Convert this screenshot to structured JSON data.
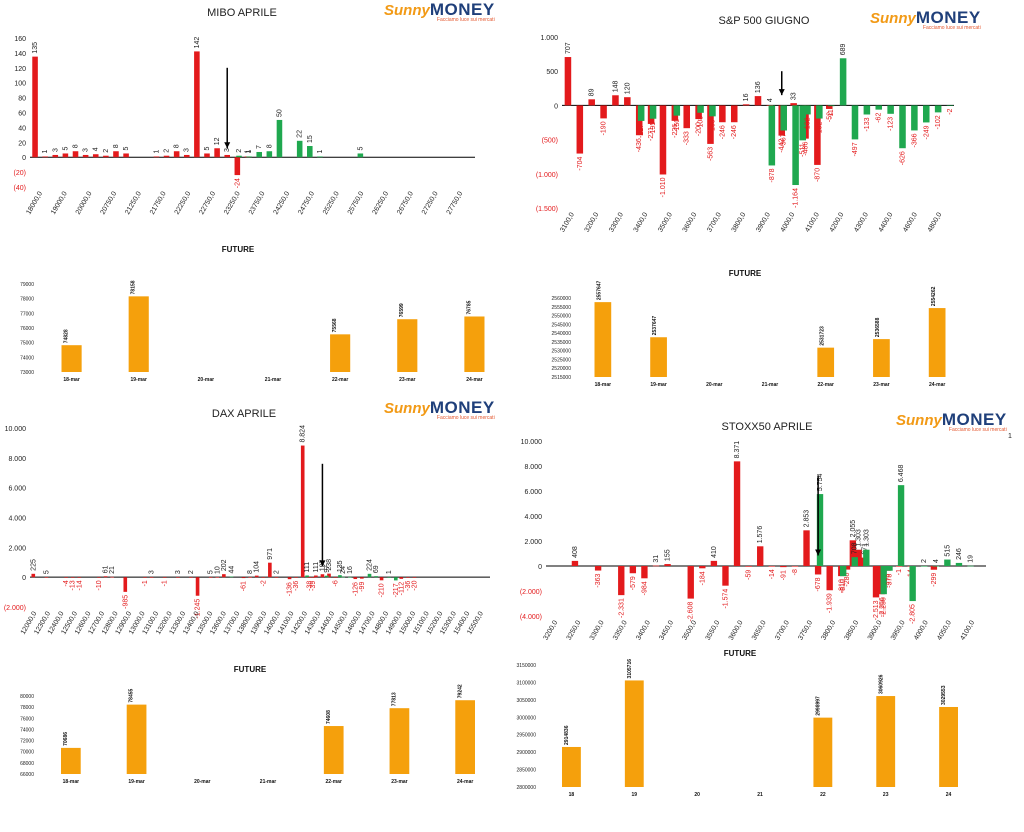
{
  "logo": {
    "brand_a": "Sunny",
    "brand_b": "MONEY",
    "tagline": "Facciamo luce sui mercati"
  },
  "page_marker": "1",
  "chart_data": [
    {
      "id": "mibo",
      "type": "bar",
      "title": "MIBO APRILE",
      "ylim": [
        -40,
        160
      ],
      "yticks": [
        -40,
        -20,
        0,
        20,
        40,
        60,
        80,
        100,
        120,
        140,
        160
      ],
      "ytick_labels": [
        "(40)",
        "(20)",
        "0",
        "20",
        "40",
        "60",
        "80",
        "100",
        "120",
        "140",
        "160"
      ],
      "xticks": [
        "18000,0",
        "19000,0",
        "20000,0",
        "20750,0",
        "21250,0",
        "21750,0",
        "22250,0",
        "22750,0",
        "23250,0",
        "23750,0",
        "24250,0",
        "24750,0",
        "25250,0",
        "25750,0",
        "26250,0",
        "26750,0",
        "27250,0",
        "27750,0"
      ],
      "num_strikes": 44,
      "series": [
        {
          "color": "#e31a1c",
          "points": [
            [
              0,
              135
            ],
            [
              1,
              1
            ],
            [
              2,
              3
            ],
            [
              3,
              5
            ],
            [
              4,
              8
            ],
            [
              5,
              3
            ],
            [
              6,
              4
            ],
            [
              7,
              2
            ],
            [
              8,
              8
            ],
            [
              9,
              5
            ],
            [
              12,
              1
            ],
            [
              13,
              2
            ],
            [
              14,
              8
            ],
            [
              15,
              3
            ],
            [
              16,
              142
            ],
            [
              17,
              5
            ],
            [
              18,
              12
            ],
            [
              19,
              3
            ],
            [
              20,
              -24
            ],
            [
              21,
              1
            ]
          ]
        },
        {
          "color": "#1fa84f",
          "points": [
            [
              20,
              2
            ],
            [
              21,
              1
            ],
            [
              22,
              7
            ],
            [
              23,
              8
            ],
            [
              24,
              50
            ],
            [
              26,
              22
            ],
            [
              27,
              15
            ],
            [
              28,
              1
            ],
            [
              32,
              5
            ]
          ]
        }
      ],
      "arrow_strike": 19.5
    },
    {
      "id": "sp500",
      "type": "bar",
      "title": "S&P 500 GIUGNO",
      "ylim": [
        -1500,
        1000
      ],
      "yticks": [
        -1500,
        -1000,
        -500,
        0,
        500,
        1000
      ],
      "ytick_labels": [
        "(1.500)",
        "(1.000)",
        "(500)",
        "0",
        "500",
        "1.000"
      ],
      "xticks": [
        "3100,0",
        "3200,0",
        "3300,0",
        "3400,0",
        "3500,0",
        "3600,0",
        "3700,0",
        "3800,0",
        "3900,0",
        "4000,0",
        "4100,0",
        "4200,0",
        "4300,0",
        "4400,0",
        "4600,0",
        "4800,0"
      ],
      "num_strikes": 33,
      "series": [
        {
          "color": "#e31a1c",
          "points": [
            [
              0,
              707
            ],
            [
              1,
              -704
            ],
            [
              2,
              89
            ],
            [
              3,
              -190
            ],
            [
              4,
              148
            ],
            [
              5,
              120
            ],
            [
              6,
              -436
            ],
            [
              7,
              -271
            ],
            [
              8,
              -1010
            ],
            [
              9,
              -226
            ],
            [
              10,
              -333
            ],
            [
              11,
              -200
            ],
            [
              12,
              -563
            ],
            [
              13,
              -246
            ],
            [
              14,
              -246
            ],
            [
              15,
              16
            ],
            [
              16,
              136
            ],
            [
              17,
              4
            ],
            [
              18,
              -442
            ],
            [
              19,
              33
            ],
            [
              20,
              -486
            ],
            [
              21,
              -870
            ],
            [
              22,
              -52
            ]
          ]
        },
        {
          "color": "#1fa84f",
          "points": [
            [
              6,
              -227
            ],
            [
              7,
              -195
            ],
            [
              9,
              -150
            ],
            [
              11,
              -108
            ],
            [
              12,
              -160
            ],
            [
              17,
              -878
            ],
            [
              18,
              -367
            ],
            [
              19,
              -1164
            ],
            [
              19.6,
              -511
            ],
            [
              20,
              -132
            ],
            [
              21,
              -192
            ],
            [
              22,
              -11
            ],
            [
              23,
              689
            ],
            [
              24,
              -497
            ],
            [
              25,
              -133
            ],
            [
              26,
              -62
            ],
            [
              27,
              -123
            ],
            [
              28,
              -626
            ],
            [
              29,
              -366
            ],
            [
              30,
              -249
            ],
            [
              31,
              -102
            ],
            [
              32,
              -2
            ]
          ]
        }
      ],
      "arrow_strike": 18.5
    },
    {
      "id": "dax",
      "type": "bar",
      "title": "DAX APRILE",
      "ylim": [
        -2000,
        10000
      ],
      "yticks": [
        -2000,
        0,
        2000,
        4000,
        6000,
        8000,
        10000
      ],
      "ytick_labels": [
        "(2.000)",
        "0",
        "2.000",
        "4.000",
        "6.000",
        "8.000",
        "10.000"
      ],
      "xticks": [
        "12000,0",
        "12300,0",
        "12400,0",
        "12500,0",
        "12600,0",
        "12700,0",
        "12800,0",
        "12900,0",
        "13000,0",
        "13100,0",
        "13200,0",
        "13300,0",
        "13400,0",
        "13500,0",
        "13600,0",
        "13700,0",
        "13800,0",
        "13900,0",
        "14000,0",
        "14100,0",
        "14200,0",
        "14300,0",
        "14400,0",
        "14500,0",
        "14600,0",
        "14700,0",
        "14800,0",
        "14900,0",
        "15000,0",
        "15100,0",
        "15200,0",
        "15300,0",
        "15400,0",
        "15500,0"
      ],
      "num_strikes": 70,
      "series": [
        {
          "color": "#e31a1c",
          "points": [
            [
              0,
              225
            ],
            [
              2,
              5
            ],
            [
              5,
              -4
            ],
            [
              6,
              -13
            ],
            [
              7,
              -14
            ],
            [
              10,
              -10
            ],
            [
              11,
              61
            ],
            [
              12,
              21
            ],
            [
              14,
              -985
            ],
            [
              17,
              -1
            ],
            [
              18,
              3
            ],
            [
              20,
              -1
            ],
            [
              22,
              3
            ],
            [
              24,
              2
            ],
            [
              25,
              -1245
            ],
            [
              27,
              5
            ],
            [
              28,
              10
            ],
            [
              29,
              202
            ],
            [
              32,
              -61
            ],
            [
              33,
              8
            ],
            [
              34,
              104
            ],
            [
              35,
              -2
            ],
            [
              36,
              971
            ],
            [
              37,
              2
            ],
            [
              39,
              -136
            ],
            [
              40,
              -36
            ],
            [
              41,
              8824
            ],
            [
              42,
              -38
            ],
            [
              42.6,
              -39
            ],
            [
              43,
              111
            ],
            [
              44,
              197
            ],
            [
              45,
              238
            ],
            [
              46,
              -6
            ],
            [
              49,
              -126
            ],
            [
              50,
              -99
            ],
            [
              53,
              -210
            ],
            [
              56,
              -112
            ],
            [
              57,
              -36
            ],
            [
              58,
              -20
            ]
          ]
        },
        {
          "color": "#1fa84f",
          "points": [
            [
              30,
              44
            ],
            [
              41.5,
              111
            ],
            [
              44.5,
              97
            ],
            [
              46.5,
              135
            ],
            [
              47,
              24
            ],
            [
              48,
              16
            ],
            [
              51,
              224
            ],
            [
              52,
              69
            ],
            [
              54,
              1
            ],
            [
              55,
              -217
            ]
          ]
        }
      ],
      "value_labels": [
        "225",
        "5",
        "-4",
        "-13",
        "-14",
        "-10",
        "61",
        "21",
        "-985",
        "-1",
        "3",
        "-1",
        "3",
        "2",
        "-1.245",
        "5",
        "10",
        "202",
        "-61",
        "8",
        "44",
        "104",
        "971",
        "2",
        "-136",
        "-36",
        "8.824",
        "-38",
        "-39",
        "111",
        "197",
        "238",
        "-6",
        "24",
        "135",
        "16",
        "-126",
        "-99",
        "224",
        "69",
        "1",
        "-217",
        "-210",
        "1",
        "-112",
        "-36",
        "1",
        "-20",
        "5"
      ],
      "arrow_strike": 44.5
    },
    {
      "id": "stoxx",
      "type": "bar",
      "title": "STOXX50 APRILE",
      "ylim": [
        -4000,
        10000
      ],
      "yticks": [
        -4000,
        -2000,
        0,
        2000,
        4000,
        6000,
        8000,
        10000
      ],
      "ytick_labels": [
        "(4.000)",
        "(2.000)",
        "0",
        "2.000",
        "4.000",
        "6.000",
        "8.000",
        "10.000"
      ],
      "xticks": [
        "3200,0",
        "3250,0",
        "3300,0",
        "3350,0",
        "3400,0",
        "3450,0",
        "3500,0",
        "3550,0",
        "3600,0",
        "3650,0",
        "3700,0",
        "3750,0",
        "3800,0",
        "3850,0",
        "3900,0",
        "3950,0",
        "4000,0",
        "4050,0",
        "4100,0"
      ],
      "num_strikes": 38,
      "series": [
        {
          "color": "#e31a1c",
          "points": [
            [
              2,
              408
            ],
            [
              4,
              -363
            ],
            [
              6,
              -2331
            ],
            [
              7,
              -579
            ],
            [
              8,
              -984
            ],
            [
              9,
              31
            ],
            [
              10,
              155
            ],
            [
              12,
              -2608
            ],
            [
              13,
              -184
            ],
            [
              14,
              410
            ],
            [
              15,
              -1574
            ],
            [
              16,
              8371
            ],
            [
              17,
              -59
            ],
            [
              18,
              1576
            ],
            [
              19,
              -14
            ],
            [
              20,
              -91
            ],
            [
              21,
              -8
            ],
            [
              22,
              2853
            ],
            [
              23,
              -678
            ],
            [
              24,
              -1939
            ],
            [
              25,
              -810
            ],
            [
              25.5,
              -286
            ],
            [
              26,
              2055
            ],
            [
              26.5,
              1303
            ],
            [
              27,
              671
            ],
            [
              28,
              -2513
            ],
            [
              28.5,
              -2256
            ],
            [
              29,
              -378
            ],
            [
              30,
              -1
            ],
            [
              31,
              -14
            ],
            [
              33,
              -299
            ]
          ]
        },
        {
          "color": "#1fa84f",
          "points": [
            [
              23,
              5754
            ],
            [
              25,
              -810
            ],
            [
              26,
              708
            ],
            [
              27,
              1303
            ],
            [
              28.5,
              -2256
            ],
            [
              29,
              -378
            ],
            [
              30,
              6468
            ],
            [
              31,
              -2805
            ],
            [
              32,
              2
            ],
            [
              33,
              4
            ],
            [
              34,
              515
            ],
            [
              35,
              246
            ],
            [
              36,
              19
            ]
          ]
        }
      ],
      "arrow_strike": 23.5
    }
  ],
  "futures": [
    {
      "id": "f-mibo",
      "title": "FUTURE",
      "categories": [
        "18-mar",
        "19-mar",
        "20-mar",
        "21-mar",
        "22-mar",
        "23-mar",
        "24-mar"
      ],
      "values": [
        74828,
        78158,
        null,
        null,
        75568,
        76599,
        76785
      ],
      "ylim": [
        73000,
        79000
      ],
      "yticks": [
        73000,
        74000,
        75000,
        76000,
        77000,
        78000,
        79000
      ],
      "ytick_labels": [
        "73000",
        "74000",
        "75000",
        "76000",
        "77000",
        "78000",
        "79000"
      ],
      "value_labels": [
        "74828",
        "78158",
        "",
        "",
        "75568",
        "76599",
        "76785"
      ]
    },
    {
      "id": "f-sp",
      "title": "FUTURE",
      "categories": [
        "18-mar",
        "19-mar",
        "20-mar",
        "21-mar",
        "22-mar",
        "23-mar",
        "24-mar"
      ],
      "values": [
        2557647,
        2537647,
        null,
        null,
        2531723,
        2536588,
        2554262
      ],
      "ylim": [
        2515000,
        2560000
      ],
      "yticks": [
        2515000,
        2520000,
        2525000,
        2530000,
        2535000,
        2540000,
        2545000,
        2550000,
        2555000,
        2560000
      ],
      "ytick_labels": [
        "2515000",
        "2520000",
        "2525000",
        "2530000",
        "2535000",
        "2540000",
        "2545000",
        "2550000",
        "2555000",
        "2560000"
      ],
      "value_labels": [
        "2557647",
        "2537647",
        "",
        "",
        "2531723",
        "2536588",
        "2554262"
      ]
    },
    {
      "id": "f-dax",
      "title": "FUTURE",
      "categories": [
        "18-mar",
        "19-mar",
        "20-mar",
        "21-mar",
        "22-mar",
        "23-mar",
        "24-mar"
      ],
      "values": [
        70686,
        78455,
        null,
        null,
        74608,
        77813,
        79242
      ],
      "ylim": [
        66000,
        80000
      ],
      "yticks": [
        66000,
        68000,
        70000,
        72000,
        74000,
        76000,
        78000,
        80000
      ],
      "ytick_labels": [
        "66000",
        "68000",
        "70000",
        "72000",
        "74000",
        "76000",
        "78000",
        "80000"
      ],
      "value_labels": [
        "70686",
        "78455",
        "",
        "",
        "74608",
        "77813",
        "79242"
      ]
    },
    {
      "id": "f-stoxx",
      "title": "FUTURE",
      "categories": [
        "18",
        "19",
        "20",
        "21",
        "22",
        "23",
        "24"
      ],
      "values": [
        2914836,
        3105716,
        null,
        null,
        2998997,
        3060926,
        3029553
      ],
      "ylim": [
        2800000,
        3150000
      ],
      "yticks": [
        2800000,
        2850000,
        2900000,
        2950000,
        3000000,
        3050000,
        3100000,
        3150000
      ],
      "ytick_labels": [
        "2800000",
        "2850000",
        "2900000",
        "2950000",
        "3000000",
        "3050000",
        "3100000",
        "3150000"
      ],
      "value_labels": [
        "2914836",
        "3105716",
        "",
        "",
        "2998997",
        "3060926",
        "3029553"
      ]
    }
  ]
}
